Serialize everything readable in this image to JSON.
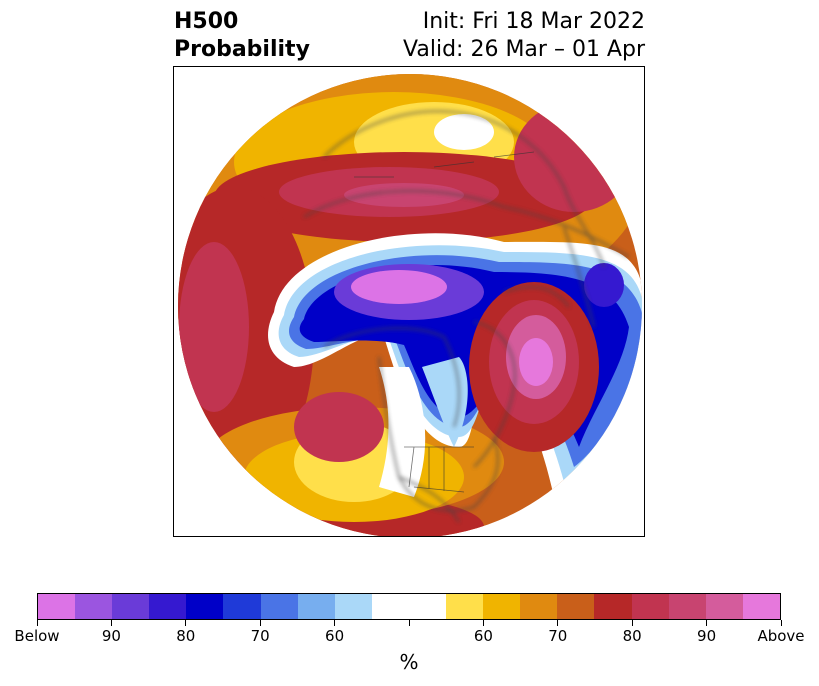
{
  "title": {
    "left_line1": "H500",
    "left_line2": "Probability",
    "right_line1": "Init: Fri 18 Mar 2022",
    "right_line2": "Valid: 26 Mar – 01 Apr"
  },
  "colorbar": {
    "units": "%",
    "colors": [
      "#dc73e6",
      "#9b55e0",
      "#6a3bd8",
      "#3519d0",
      "#0000c8",
      "#1f3ad8",
      "#4a74e6",
      "#77aeef",
      "#aad8f8",
      "#ffffff",
      "#ffffff",
      "#ffdf4a",
      "#f0b400",
      "#e08a10",
      "#c95f1a",
      "#b62828",
      "#c13450",
      "#c84470",
      "#d45c9c",
      "#e678dc"
    ],
    "ticks": [
      {
        "label": "Below",
        "index": 0
      },
      {
        "label": "90",
        "index": 2
      },
      {
        "label": "80",
        "index": 4
      },
      {
        "label": "70",
        "index": 6
      },
      {
        "label": "60",
        "index": 8
      },
      {
        "label": "",
        "index": 10
      },
      {
        "label": "60",
        "index": 12
      },
      {
        "label": "70",
        "index": 14
      },
      {
        "label": "80",
        "index": 16
      },
      {
        "label": "90",
        "index": 18
      },
      {
        "label": "Above",
        "index": 20
      }
    ]
  },
  "map": {
    "projection": "north-polar-stereographic",
    "category_colors": {
      "above_high": "#e678dc",
      "above_mid": "#c84470",
      "above_low": "#b62828",
      "near_above": "#e08a10",
      "neutral": "#ffffff",
      "near_below": "#aad8f8",
      "below_mid": "#0000c8",
      "below_high": "#dc73e6"
    }
  }
}
